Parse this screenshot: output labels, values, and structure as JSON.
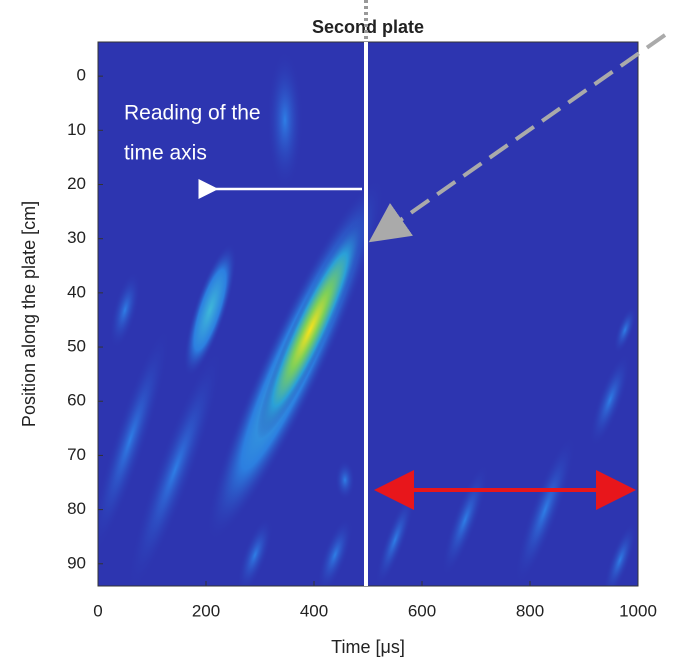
{
  "chart_data": {
    "type": "heatmap",
    "title": "Second plate",
    "x_label": "Time [μs]",
    "y_label": "Position along the plate [cm]",
    "xlim": [
      0,
      1000
    ],
    "xticks": [
      0,
      200,
      400,
      600,
      800,
      1000
    ],
    "ylim": [
      -6.3,
      94.1
    ],
    "yticks": [
      0,
      10,
      20,
      30,
      40,
      50,
      60,
      70,
      80,
      90
    ],
    "y_reversed": true,
    "annotations": [
      "Reading of the",
      "time axis"
    ]
  }
}
